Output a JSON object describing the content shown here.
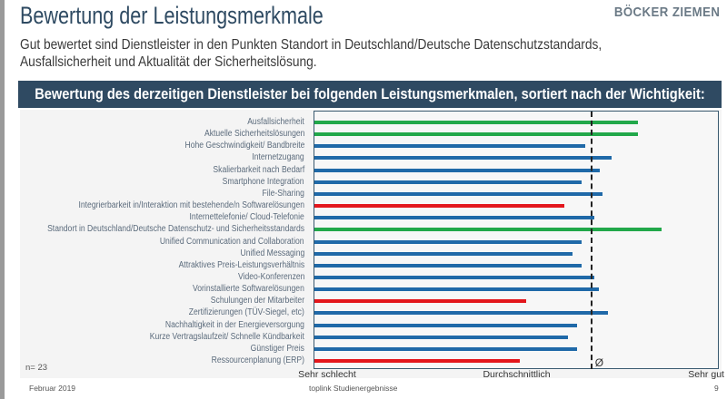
{
  "header": {
    "title": "Bewertung der Leistungsmerkmale",
    "brand": "BÖCKER ZIEMEN",
    "subtitle_line1": "Gut bewertet sind Dienstleister in den Punkten Standort in Deutschland/Deutsche Datenschutzstandards,",
    "subtitle_line2": "Ausfallsicherheit und Aktualität der Sicherheitslösung."
  },
  "banner": "Bewertung des derzeitigen Dienstleister bei folgenden Leistungsmerkmalen, sortiert nach der Wichtigkeit:",
  "chart_data": {
    "type": "bar",
    "orientation": "horizontal",
    "xlim": [
      1,
      5
    ],
    "x_tick_labels": [
      {
        "value": 1,
        "label": "Sehr schlecht"
      },
      {
        "value": 3,
        "label": "Durchschnittlich"
      },
      {
        "value": 5,
        "label": "Sehr gut"
      }
    ],
    "average": {
      "value": 3.73,
      "label": "Ø"
    },
    "colors": {
      "green": "#22a84a",
      "blue": "#1f69a8",
      "red": "#e3161c"
    },
    "categories": [
      "Ausfallsicherheit",
      "Aktuelle Sicherheitslösungen",
      "Hohe Geschwindigkeit/ Bandbreite",
      "Internetzugang",
      "Skalierbarkeit nach Bedarf",
      "Smartphone Integration",
      "File-Sharing",
      "Integrierbarkeit in/Interaktion mit bestehende/n Softwarelösungen",
      "Internettelefonie/ Cloud-Telefonie",
      "Standort in Deutschland/Deutsche Datenschutz- und Sicherheitsstandards",
      "Unified Communication and Collaboration",
      "Unified Messaging",
      "Attraktives Preis-Leistungsverhältnis",
      "Video-Konferenzen",
      "Vorinstallierte Softwarelösungen",
      "Schulungen der Mitarbeiter",
      "Zertifizierungen (TÜV-Siegel, etc)",
      "Nachhaltigkeit in der Energieversorgung",
      "Kurze Vertragslaufzeit/ Schnelle Kündbarkeit",
      "Günstiger Preis",
      "Ressourcenplanung (ERP)"
    ],
    "values": [
      4.2,
      4.2,
      3.68,
      3.94,
      3.82,
      3.64,
      3.85,
      3.47,
      3.77,
      4.43,
      3.64,
      3.55,
      3.64,
      3.77,
      3.81,
      3.09,
      3.9,
      3.6,
      3.51,
      3.6,
      3.03
    ],
    "bar_colors": [
      "green",
      "green",
      "blue",
      "blue",
      "blue",
      "blue",
      "blue",
      "red",
      "blue",
      "green",
      "blue",
      "blue",
      "blue",
      "blue",
      "blue",
      "red",
      "blue",
      "blue",
      "blue",
      "blue",
      "red"
    ],
    "note": "n= 23"
  },
  "footer": {
    "date": "Februar 2019",
    "source": "toplink Studienergebnisse",
    "page": "9"
  }
}
